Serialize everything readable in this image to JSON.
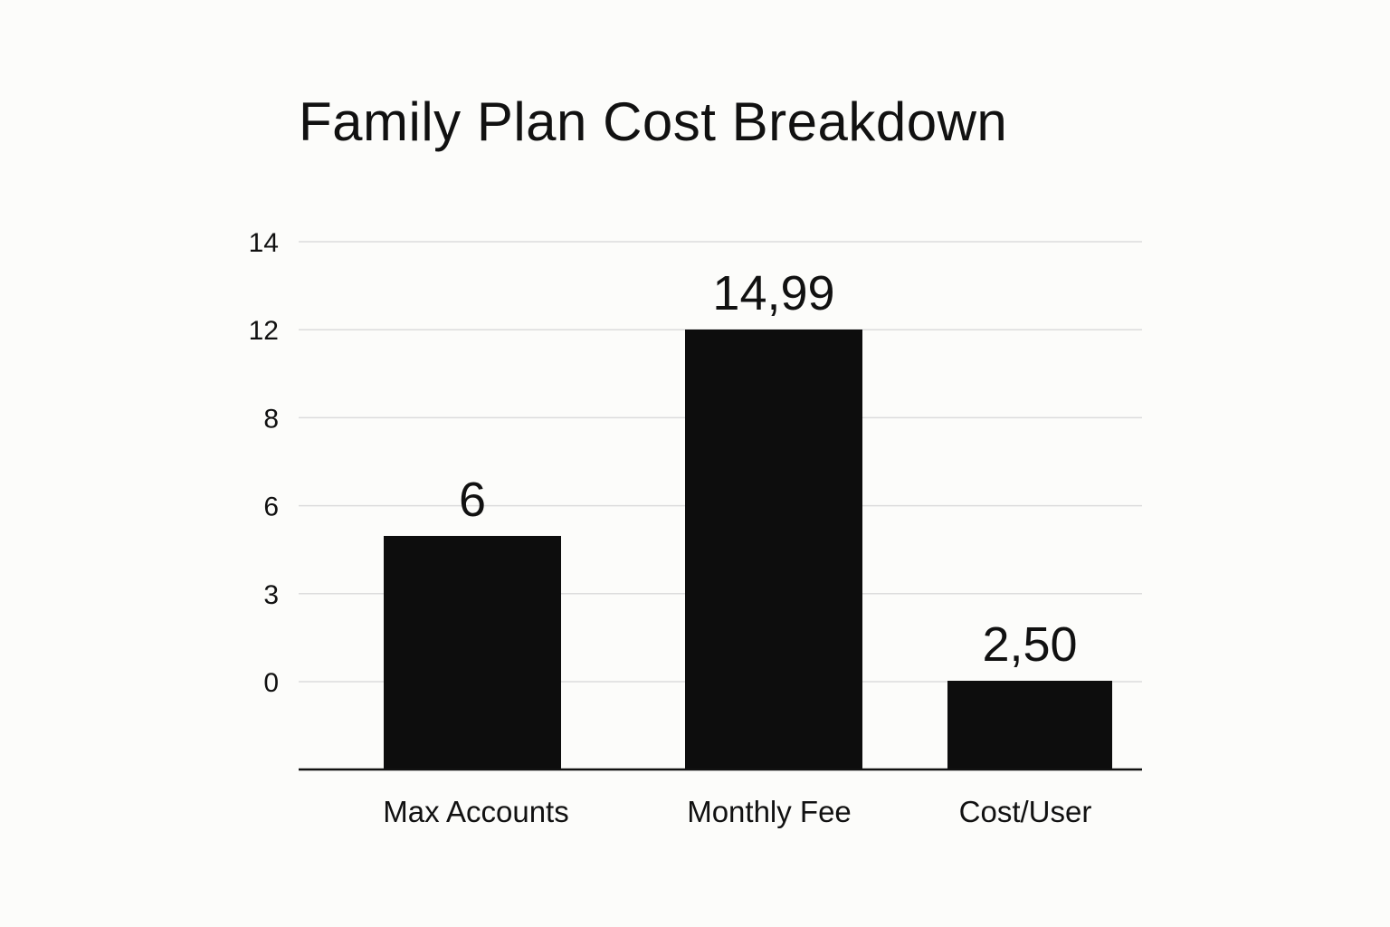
{
  "chart_data": {
    "type": "bar",
    "title": "Family Plan Cost Breakdown",
    "xlabel": "",
    "ylabel": "",
    "categories": [
      "Max Accounts",
      "Monthly Fee",
      "Cost/User"
    ],
    "values": [
      6,
      14.99,
      2.5
    ],
    "data_labels": [
      "6",
      "14,99",
      "2,50"
    ],
    "y_ticks": [
      "0",
      "3",
      "6",
      "8",
      "12",
      "14"
    ],
    "grid": true,
    "legend": "none",
    "colors": {
      "bar": "#0d0d0d",
      "grid": "#dcdcdc",
      "background": "#fcfcfa"
    }
  }
}
